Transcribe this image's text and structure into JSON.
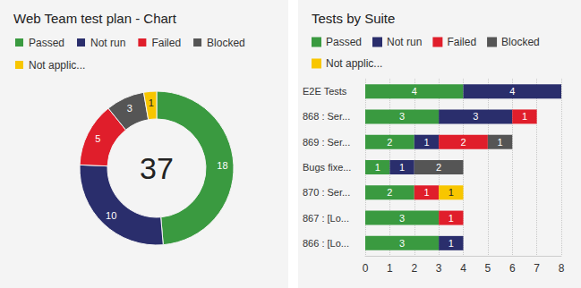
{
  "chart_data": [
    {
      "type": "pie",
      "title": "Web Team test plan - Chart",
      "categories": [
        "Passed",
        "Not run",
        "Failed",
        "Blocked",
        "Not applic..."
      ],
      "values": [
        18,
        10,
        5,
        3,
        1
      ],
      "colors": [
        "#3a9a40",
        "#2a2e6c",
        "#e01e2b",
        "#555555",
        "#f8c600"
      ],
      "total": 37,
      "data_labels": true,
      "legend": "top-left"
    },
    {
      "type": "bar",
      "title": "Tests by Suite",
      "orientation": "horizontal",
      "stacked": true,
      "categories": [
        "E2E Tests",
        "868 : Ser...",
        "869 : Ser...",
        "Bugs fixe...",
        "870 : Ser...",
        "867 : [Lo...",
        "866 : [Lo..."
      ],
      "series": [
        {
          "name": "Passed",
          "color": "#3a9a40",
          "values": [
            4,
            3,
            2,
            1,
            2,
            3,
            3
          ]
        },
        {
          "name": "Not run",
          "color": "#2a2e6c",
          "values": [
            4,
            3,
            1,
            1,
            null,
            null,
            1
          ]
        },
        {
          "name": "Failed",
          "color": "#e01e2b",
          "values": [
            null,
            1,
            2,
            null,
            1,
            1,
            null
          ]
        },
        {
          "name": "Blocked",
          "color": "#555555",
          "values": [
            null,
            null,
            1,
            2,
            null,
            null,
            null
          ]
        },
        {
          "name": "Not applic...",
          "color": "#f8c600",
          "values": [
            null,
            null,
            null,
            null,
            1,
            null,
            null
          ]
        }
      ],
      "xlim": [
        0,
        8
      ],
      "xticks": [
        0,
        1,
        2,
        3,
        4,
        5,
        6,
        7,
        8
      ],
      "grid": true,
      "data_labels": true,
      "legend": "top-left"
    }
  ]
}
